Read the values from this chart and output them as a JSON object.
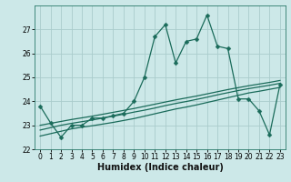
{
  "xlabel": "Humidex (Indice chaleur)",
  "background_color": "#cce8e8",
  "grid_color": "#aacccc",
  "line_color": "#1a6b5a",
  "x_values": [
    0,
    1,
    2,
    3,
    4,
    5,
    6,
    7,
    8,
    9,
    10,
    11,
    12,
    13,
    14,
    15,
    16,
    17,
    18,
    19,
    20,
    21,
    22,
    23
  ],
  "main_y": [
    23.8,
    23.1,
    22.5,
    23.0,
    23.0,
    23.3,
    23.3,
    23.4,
    23.5,
    24.0,
    25.0,
    26.7,
    27.2,
    25.6,
    26.5,
    26.6,
    27.6,
    26.3,
    26.2,
    24.1,
    24.1,
    23.6,
    22.6,
    24.7
  ],
  "trend1_y": [
    22.55,
    22.65,
    22.75,
    22.85,
    22.92,
    22.98,
    23.05,
    23.12,
    23.2,
    23.28,
    23.38,
    23.48,
    23.58,
    23.68,
    23.76,
    23.85,
    23.95,
    24.05,
    24.15,
    24.25,
    24.35,
    24.42,
    24.5,
    24.58
  ],
  "trend2_y": [
    22.8,
    22.9,
    23.0,
    23.08,
    23.15,
    23.22,
    23.3,
    23.38,
    23.46,
    23.55,
    23.63,
    23.72,
    23.82,
    23.91,
    23.99,
    24.08,
    24.17,
    24.27,
    24.36,
    24.45,
    24.53,
    24.6,
    24.67,
    24.75
  ],
  "trend3_y": [
    23.0,
    23.08,
    23.16,
    23.24,
    23.31,
    23.38,
    23.46,
    23.54,
    23.62,
    23.7,
    23.79,
    23.88,
    23.97,
    24.06,
    24.14,
    24.22,
    24.31,
    24.4,
    24.49,
    24.57,
    24.65,
    24.72,
    24.79,
    24.87
  ],
  "ylim": [
    22,
    28
  ],
  "xlim": [
    -0.5,
    23.5
  ],
  "yticks": [
    22,
    23,
    24,
    25,
    26,
    27
  ],
  "xticks": [
    0,
    1,
    2,
    3,
    4,
    5,
    6,
    7,
    8,
    9,
    10,
    11,
    12,
    13,
    14,
    15,
    16,
    17,
    18,
    19,
    20,
    21,
    22,
    23
  ],
  "tick_fontsize": 5.5,
  "xlabel_fontsize": 7,
  "marker_size": 2.5
}
